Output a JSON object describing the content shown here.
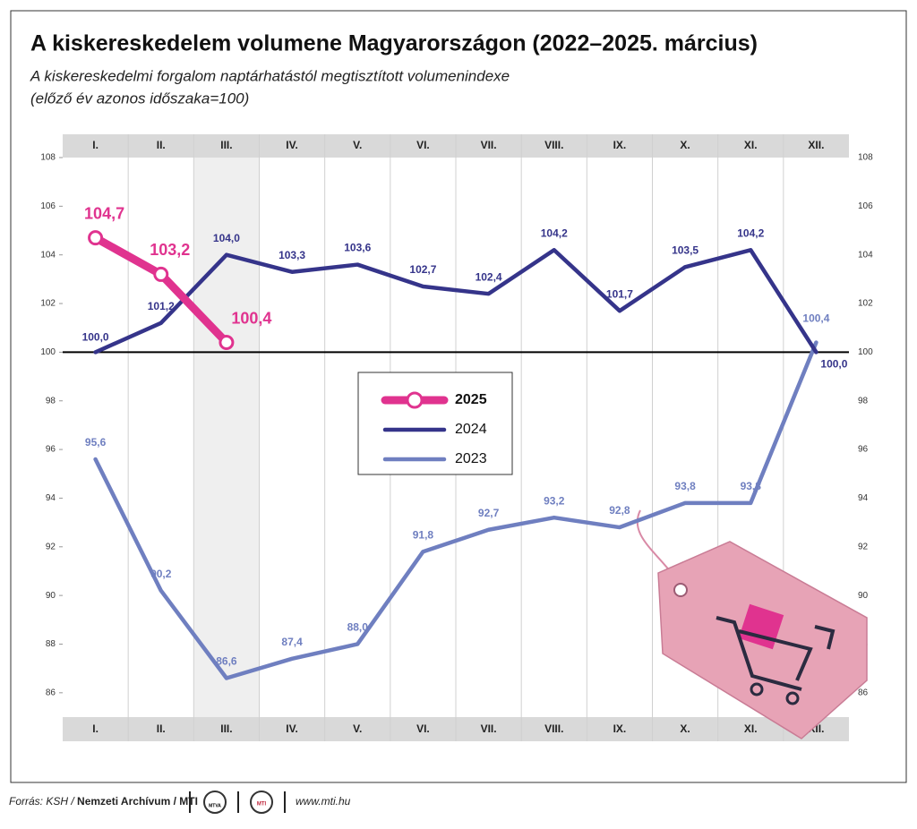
{
  "chart_data": {
    "type": "line",
    "title": "A kiskereskedelem volumene Magyarországon (2022–2025. március)",
    "subtitle": [
      "A kiskereskedelmi forgalom naptárhatástól megtisztított volumenindexe",
      "(előző év azonos időszaka=100)"
    ],
    "categories": [
      "I.",
      "II.",
      "III.",
      "IV.",
      "V.",
      "VI.",
      "VII.",
      "VIII.",
      "IX.",
      "X.",
      "XI.",
      "XII."
    ],
    "ylim": [
      85,
      108
    ],
    "yticks": [
      86,
      88,
      90,
      92,
      94,
      96,
      98,
      100,
      102,
      104,
      106,
      108
    ],
    "reference_line": 100,
    "highlight_category": 2,
    "series": [
      {
        "name": "2025",
        "color": "#e0338f",
        "values": [
          104.7,
          103.2,
          100.4,
          null,
          null,
          null,
          null,
          null,
          null,
          null,
          null,
          null
        ],
        "value_labels": [
          "104,7",
          "103,2",
          "100,4",
          null,
          null,
          null,
          null,
          null,
          null,
          null,
          null,
          null
        ]
      },
      {
        "name": "2024",
        "color": "#35348a",
        "values": [
          100.0,
          101.2,
          104.0,
          103.3,
          103.6,
          102.7,
          102.4,
          104.2,
          101.7,
          103.5,
          104.2,
          100.0
        ],
        "value_labels": [
          "100,0",
          "101,2",
          "104,0",
          "103,3",
          "103,6",
          "102,7",
          "102,4",
          "104,2",
          "101,7",
          "103,5",
          "104,2",
          "100,0"
        ]
      },
      {
        "name": "2023",
        "color": "#6f7fc0",
        "values": [
          95.6,
          90.2,
          86.6,
          87.4,
          88.0,
          91.8,
          92.7,
          93.2,
          92.8,
          93.8,
          93.8,
          100.4
        ],
        "value_labels": [
          "95,6",
          "90,2",
          "86,6",
          "87,4",
          "88,0",
          "91,8",
          "92,7",
          "93,2",
          "92,8",
          "93,8",
          "93,8",
          "100,4"
        ]
      }
    ]
  },
  "footer": {
    "source_prefix": "Forrás: KSH /",
    "source_bold": "Nemzeti Archívum / MTI",
    "logos": [
      "MTVA",
      "MTI"
    ],
    "website": "www.mti.hu"
  }
}
